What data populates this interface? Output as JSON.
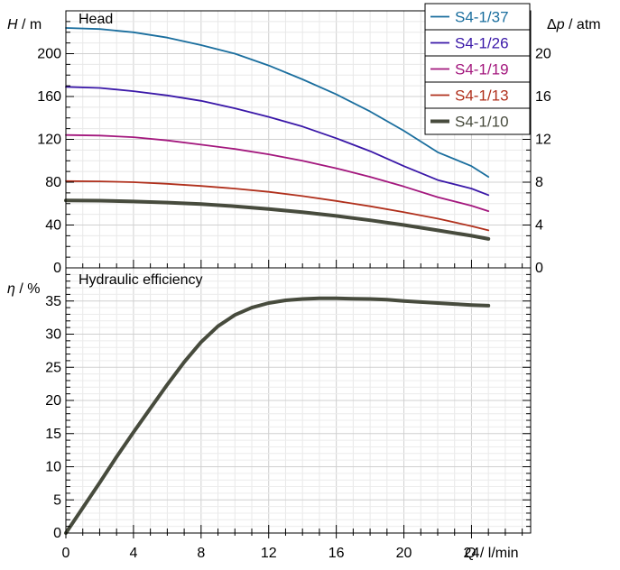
{
  "chart_data": [
    {
      "type": "line",
      "title": "Head",
      "xlabel": "Q / l/min",
      "ylabel": "H / m",
      "ylabel_right": "Δp / atm",
      "xlim": [
        0,
        27.5
      ],
      "ylim": [
        0,
        240
      ],
      "ylim_right": [
        0,
        24
      ],
      "x_ticks": [
        "0",
        "4",
        "8",
        "12",
        "16",
        "20",
        "24"
      ],
      "y_ticks": [
        "0",
        "40",
        "80",
        "120",
        "160",
        "200"
      ],
      "y_ticks_right": [
        "0",
        "4",
        "8",
        "12",
        "16",
        "20"
      ],
      "grid": true,
      "legend_position": "top-right",
      "x": [
        0,
        2,
        4,
        6,
        8,
        10,
        12,
        14,
        16,
        18,
        20,
        22,
        24,
        25
      ],
      "series": [
        {
          "name": "S4-1/37",
          "color": "#1a6e9e",
          "width": 1.8,
          "values": [
            224,
            223,
            220,
            215,
            208,
            200,
            189,
            176,
            162,
            146,
            128,
            108,
            95,
            85
          ]
        },
        {
          "name": "S4-1/26",
          "color": "#3a18a8",
          "width": 1.8,
          "values": [
            169,
            168,
            165,
            161,
            156,
            149,
            141,
            132,
            121,
            109,
            95,
            82,
            74,
            68
          ]
        },
        {
          "name": "S4-1/19",
          "color": "#a3177d",
          "width": 1.8,
          "values": [
            124,
            123.5,
            122,
            119,
            115,
            111,
            106,
            100,
            93,
            85,
            76,
            66,
            58,
            53
          ]
        },
        {
          "name": "S4-1/13",
          "color": "#b0301c",
          "width": 1.8,
          "values": [
            81,
            80.8,
            80,
            78.5,
            76.5,
            74,
            71,
            67,
            62.5,
            57.5,
            52,
            46,
            39,
            35
          ]
        },
        {
          "name": "S4-1/10",
          "color": "#474b3d",
          "width": 4,
          "values": [
            63,
            62.7,
            62,
            61,
            59.5,
            57.5,
            55,
            52,
            48.5,
            44.5,
            40,
            35,
            30,
            27
          ]
        }
      ]
    },
    {
      "type": "line",
      "title": "Hydraulic efficiency",
      "xlabel": "Q / l/min",
      "ylabel": "η / %",
      "xlim": [
        0,
        27.5
      ],
      "ylim": [
        0,
        40
      ],
      "x_ticks": [
        "0",
        "4",
        "8",
        "12",
        "16",
        "20",
        "24"
      ],
      "y_ticks": [
        "0",
        "5",
        "10",
        "15",
        "20",
        "25",
        "30",
        "35"
      ],
      "grid": true,
      "x": [
        0,
        1,
        2,
        3,
        4,
        5,
        6,
        7,
        8,
        9,
        10,
        11,
        12,
        13,
        14,
        15,
        16,
        17,
        18,
        19,
        20,
        21,
        22,
        23,
        24,
        25
      ],
      "series": [
        {
          "name": "S4-1/10",
          "color": "#474b3d",
          "width": 4,
          "values": [
            0,
            3.8,
            7.6,
            11.5,
            15.2,
            18.8,
            22.4,
            25.8,
            28.8,
            31.2,
            32.9,
            34.0,
            34.7,
            35.1,
            35.3,
            35.4,
            35.4,
            35.35,
            35.3,
            35.2,
            35.0,
            34.85,
            34.7,
            34.55,
            34.4,
            34.3
          ]
        }
      ]
    }
  ]
}
